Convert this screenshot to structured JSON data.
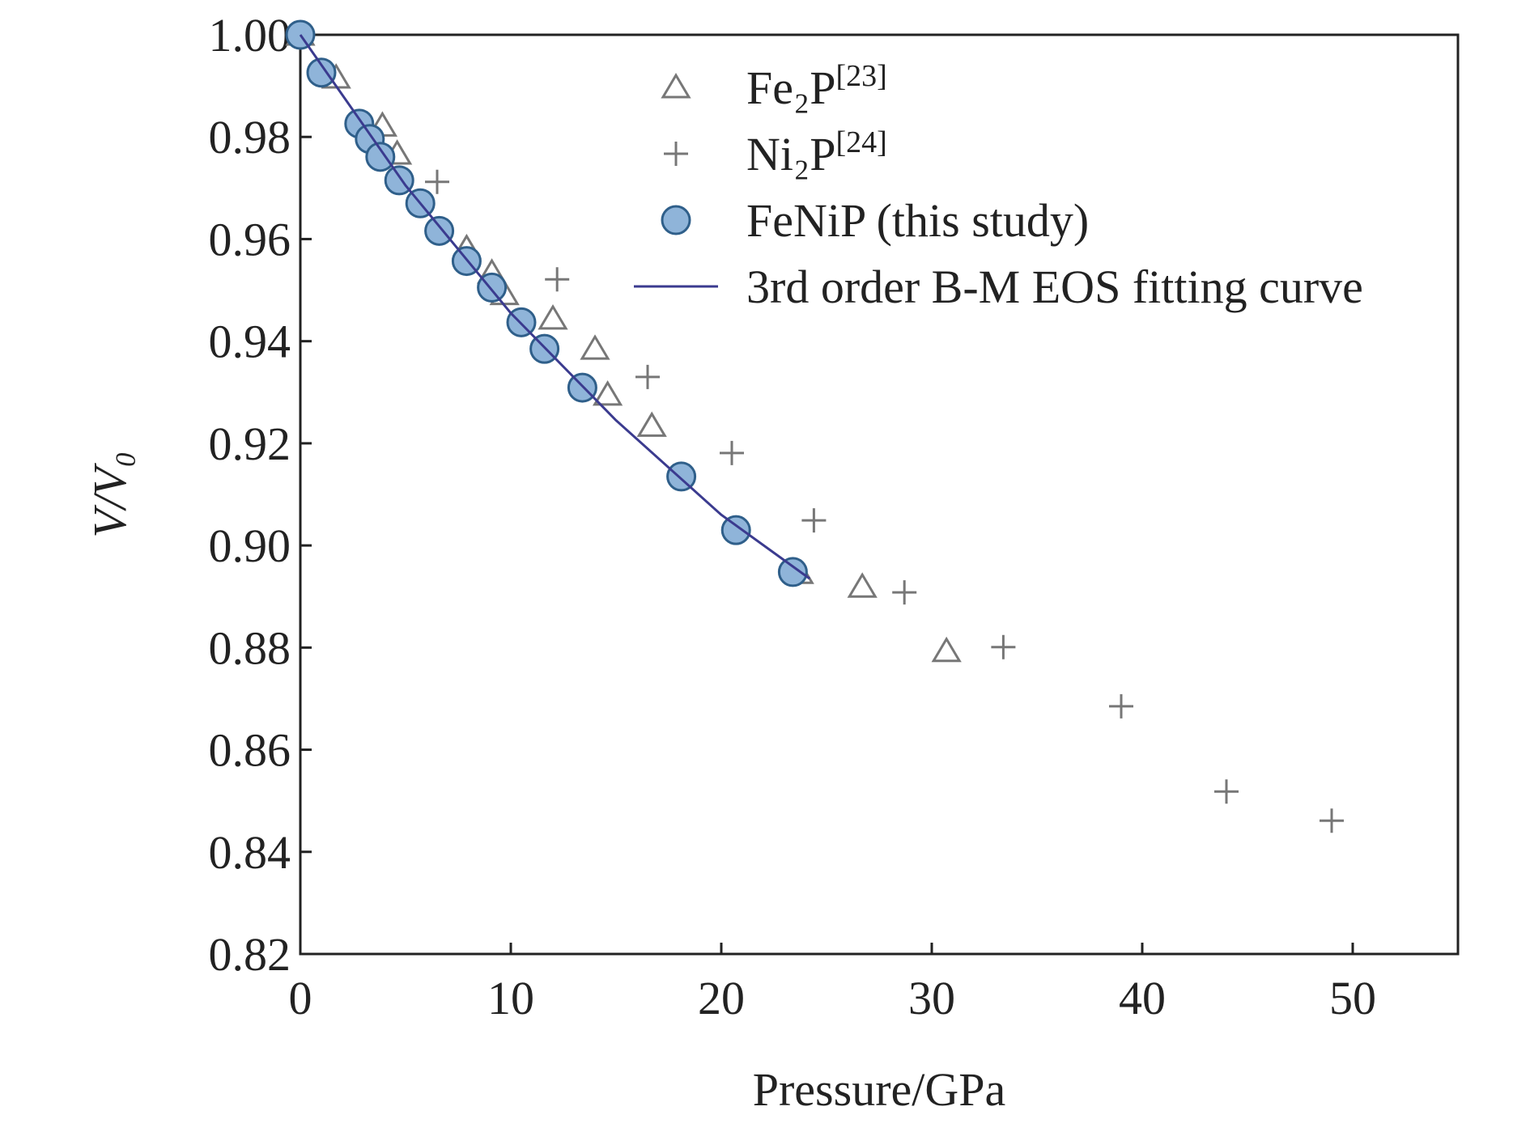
{
  "chart_data": {
    "type": "scatter",
    "x_label": "Pressure/GPa",
    "y_label": "V/V₀",
    "xlim": [
      0,
      55
    ],
    "xticks": [
      0,
      10,
      20,
      30,
      40,
      50
    ],
    "ylim": [
      0.82,
      1.0
    ],
    "yticks": [
      0.82,
      0.84,
      0.86,
      0.88,
      {
        "value": 0.9,
        "label": "0.90"
      },
      0.92,
      0.94,
      0.96,
      0.98,
      {
        "value": 1.0,
        "label": "1.00"
      }
    ],
    "series": [
      {
        "name": "Fe₂P[23]",
        "marker": "triangle",
        "color": "#777777",
        "x": [
          0,
          1.7,
          3.9,
          4.6,
          7.9,
          9.1,
          9.7,
          12.0,
          14.0,
          14.6,
          16.7,
          23.7,
          26.7,
          30.7
        ],
        "values": [
          1.0,
          0.9916,
          0.9822,
          0.9767,
          0.9582,
          0.9534,
          0.9492,
          0.9444,
          0.9385,
          0.9295,
          0.9234,
          0.8946,
          0.8919,
          0.8793
        ]
      },
      {
        "name": "Ni₂P[24]",
        "marker": "plus",
        "color": "#777777",
        "x": [
          6.5,
          12.2,
          16.5,
          20.5,
          24.4,
          28.7,
          33.4,
          39.0,
          44.0,
          49.0
        ],
        "values": [
          0.9712,
          0.9521,
          0.933,
          0.9181,
          0.9049,
          0.8908,
          0.8801,
          0.8685,
          0.8518,
          0.8461
        ]
      },
      {
        "name": "FeNiP (this study)",
        "marker": "circle",
        "color": "#8fb4d9",
        "x": [
          0,
          1.0,
          2.8,
          3.3,
          3.8,
          4.7,
          5.7,
          6.6,
          7.9,
          9.1,
          10.5,
          11.6,
          13.4,
          18.1,
          20.7,
          23.4
        ],
        "values": [
          1.0,
          0.9926,
          0.9826,
          0.9796,
          0.9761,
          0.9715,
          0.967,
          0.9616,
          0.9557,
          0.9505,
          0.9437,
          0.9385,
          0.9309,
          0.9135,
          0.903,
          0.8948
        ]
      },
      {
        "name": "3rd order B-M EOS fitting curve",
        "marker": "line",
        "color": "#3b3b8f",
        "x": [
          0,
          5,
          10,
          15,
          20,
          24.2
        ],
        "values": [
          1.0,
          0.9705,
          0.9455,
          0.9245,
          0.906,
          0.8935
        ]
      }
    ]
  }
}
